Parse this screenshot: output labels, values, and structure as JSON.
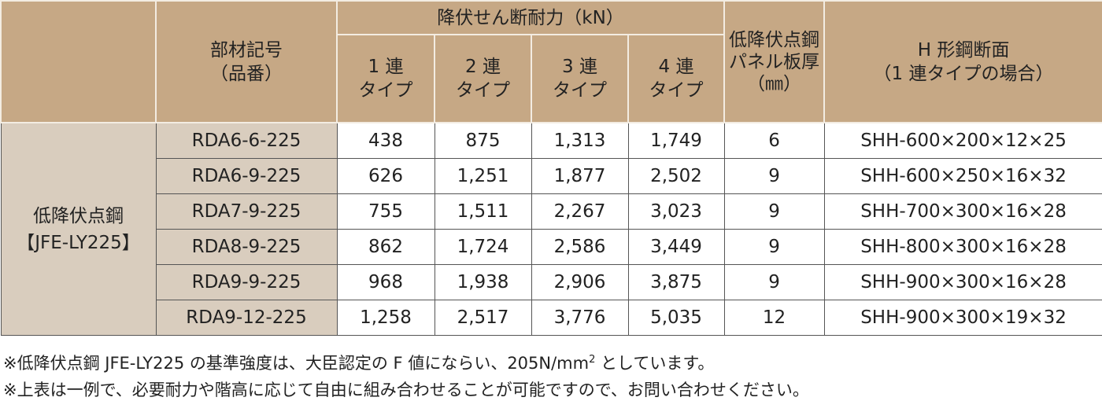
{
  "header": {
    "group_label": "降伏せん断耐力（kN）",
    "member_code": [
      "部材記号",
      "（品番）"
    ],
    "types": [
      [
        "1 連",
        "タイプ"
      ],
      [
        "2 連",
        "タイプ"
      ],
      [
        "3 連",
        "タイプ"
      ],
      [
        "4 連",
        "タイプ"
      ]
    ],
    "thickness": [
      "低降伏点鋼",
      "パネル板厚",
      "（㎜）"
    ],
    "section": [
      "H 形鋼断面",
      "（1 連タイプの場合）"
    ]
  },
  "material": [
    "低降伏点鋼",
    "【JFE-LY225】"
  ],
  "table": {
    "rows": [
      [
        "RDA6-6-225",
        "438",
        "875",
        "1,313",
        "1,749",
        "6",
        "SHH-600×200×12×25"
      ],
      [
        "RDA6-9-225",
        "626",
        "1,251",
        "1,877",
        "2,502",
        "9",
        "SHH-600×250×16×32"
      ],
      [
        "RDA7-9-225",
        "755",
        "1,511",
        "2,267",
        "3,023",
        "9",
        "SHH-700×300×16×28"
      ],
      [
        "RDA8-9-225",
        "862",
        "1,724",
        "2,586",
        "3,449",
        "9",
        "SHH-800×300×16×28"
      ],
      [
        "RDA9-9-225",
        "968",
        "1,938",
        "2,906",
        "3,875",
        "9",
        "SHH-900×300×16×28"
      ],
      [
        "RDA9-12-225",
        "1,258",
        "2,517",
        "3,776",
        "5,035",
        "12",
        "SHH-900×300×19×32"
      ]
    ]
  },
  "notes": [
    {
      "before": "※低降伏点鋼 JFE-LY225 の基準強度は、大臣認定の F 値にならい、205N/mm",
      "superscript": "2",
      "after": " としています。"
    },
    {
      "before": "※上表は一例で、必要耐力や階高に応じて自由に組み合わせることが可能ですので、お問い合わせください。"
    }
  ]
}
